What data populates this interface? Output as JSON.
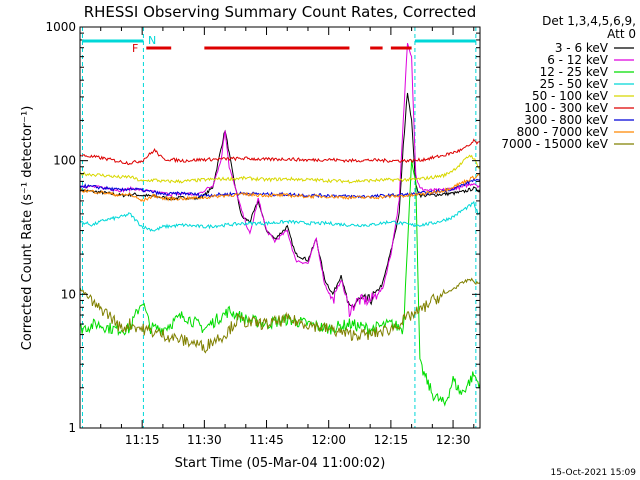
{
  "chart_data": {
    "type": "line",
    "title": "RHESSI Observing Summary Count Rates, Corrected",
    "xlabel": "Start Time (05-Mar-04 11:00:02)",
    "ylabel": "Corrected Count Rate (s⁻¹ detector⁻¹)",
    "yscale": "log",
    "ylim": [
      1,
      1000
    ],
    "xlim_minutes": [
      0,
      96.5
    ],
    "x_tick_labels": [
      "11:15",
      "11:30",
      "11:45",
      "12:00",
      "12:15",
      "12:30"
    ],
    "x_tick_minutes": [
      15,
      30,
      45,
      60,
      75,
      90
    ],
    "y_tick_labels": [
      "1",
      "10",
      "100",
      "1000"
    ],
    "y_tick_values": [
      1,
      10,
      100,
      1000
    ],
    "legend_header": [
      "Det 1,3,4,5,6,9,",
      "Att 0"
    ],
    "legend_position": "right",
    "annotations": {
      "night_marker": "N",
      "flare_marker": "F"
    },
    "footer_date": "15-Oct-2021 15:09",
    "series": [
      {
        "name": "3 - 6 keV",
        "color": "#000000",
        "x": [
          0,
          5,
          10,
          13,
          15,
          18,
          22,
          26,
          28,
          30,
          32,
          35,
          37,
          39,
          41,
          43,
          45,
          47,
          50,
          52,
          55,
          57,
          59,
          61,
          63,
          65,
          67,
          70,
          73,
          75,
          77,
          78,
          79,
          80,
          81,
          82,
          84,
          87,
          90,
          92,
          95,
          96
        ],
        "y": [
          60,
          58,
          55,
          56,
          55,
          54,
          52,
          53,
          52,
          55,
          63,
          170,
          75,
          38,
          35,
          50,
          30,
          26,
          32,
          20,
          18,
          26,
          13,
          10,
          14,
          7.6,
          9,
          9,
          12,
          21,
          40,
          130,
          330,
          200,
          65,
          55,
          55,
          56,
          57,
          58,
          62,
          60
        ]
      },
      {
        "name": "6 - 12 keV",
        "color": "#dd00dd",
        "x": [
          0,
          5,
          10,
          13,
          15,
          18,
          22,
          26,
          28,
          30,
          32,
          34,
          35,
          36,
          37,
          39,
          41,
          43,
          45,
          47,
          50,
          52,
          55,
          57,
          59,
          61,
          63,
          65,
          67,
          70,
          73,
          75,
          77,
          78,
          79,
          80,
          81,
          82,
          84,
          87,
          90,
          92,
          95,
          96
        ],
        "y": [
          65,
          63,
          60,
          62,
          60,
          58,
          56,
          57,
          55,
          60,
          65,
          100,
          170,
          90,
          70,
          42,
          28,
          52,
          30,
          25,
          30,
          18,
          17,
          26,
          12,
          9,
          13,
          7.5,
          9,
          9,
          11,
          20,
          50,
          200,
          780,
          600,
          78,
          62,
          60,
          60,
          62,
          63,
          68,
          65
        ]
      },
      {
        "name": "12 - 25 keV",
        "color": "#00dd00",
        "x": [
          0,
          4,
          8,
          12,
          15,
          17,
          20,
          25,
          30,
          33,
          36,
          40,
          45,
          50,
          55,
          60,
          65,
          70,
          75,
          78,
          80,
          81,
          82,
          85,
          88,
          90,
          92,
          95,
          96
        ],
        "y": [
          5.5,
          6,
          5.5,
          5.5,
          9,
          5.6,
          5.5,
          7,
          5.5,
          6.5,
          7.5,
          6.5,
          6,
          6.5,
          6,
          5.5,
          6,
          5.5,
          6,
          5.5,
          100,
          70,
          3,
          1.8,
          1.5,
          2.3,
          1.8,
          2.5,
          2.2
        ]
      },
      {
        "name": "25 - 50 keV",
        "color": "#00d8d8",
        "x": [
          0,
          3,
          6,
          10,
          12,
          15,
          18,
          20,
          25,
          30,
          35,
          40,
          45,
          50,
          55,
          60,
          65,
          70,
          75,
          80,
          82,
          85,
          88,
          90,
          92,
          95,
          96
        ],
        "y": [
          35,
          33,
          36,
          38,
          40,
          32,
          30,
          32,
          33,
          32,
          33,
          34,
          34,
          35,
          34,
          34,
          33,
          33,
          35,
          33,
          33,
          34,
          36,
          38,
          42,
          48,
          40
        ]
      },
      {
        "name": "50 - 100 keV",
        "color": "#d8d800",
        "x": [
          0,
          5,
          10,
          12,
          15,
          18,
          20,
          25,
          30,
          35,
          40,
          45,
          50,
          55,
          60,
          65,
          70,
          75,
          80,
          82,
          85,
          88,
          90,
          92,
          94,
          95,
          96
        ],
        "y": [
          80,
          78,
          75,
          76,
          70,
          72,
          70,
          70,
          72,
          73,
          74,
          72,
          73,
          72,
          71,
          70,
          71,
          72,
          72,
          73,
          75,
          78,
          85,
          95,
          110,
          105,
          90
        ]
      },
      {
        "name": "100 - 300 keV",
        "color": "#dd0000",
        "x": [
          0,
          5,
          10,
          12,
          15,
          18,
          20,
          25,
          30,
          35,
          40,
          45,
          50,
          55,
          60,
          65,
          70,
          75,
          80,
          82,
          85,
          88,
          90,
          92,
          94,
          95,
          96
        ],
        "y": [
          110,
          105,
          98,
          96,
          100,
          120,
          103,
          100,
          102,
          103,
          104,
          102,
          103,
          101,
          102,
          100,
          101,
          100,
          100,
          101,
          105,
          110,
          115,
          120,
          130,
          140,
          135
        ]
      },
      {
        "name": "300 - 800 keV",
        "color": "#0000d8",
        "x": [
          0,
          5,
          10,
          12,
          15,
          18,
          20,
          25,
          30,
          35,
          40,
          45,
          50,
          55,
          60,
          65,
          70,
          75,
          80,
          82,
          85,
          88,
          90,
          92,
          95,
          96
        ],
        "y": [
          65,
          63,
          60,
          62,
          60,
          58,
          56,
          57,
          55,
          56,
          57,
          56,
          56,
          55,
          55,
          54,
          54,
          55,
          56,
          57,
          58,
          60,
          62,
          65,
          72,
          70
        ]
      },
      {
        "name": "800 - 7000 keV",
        "color": "#ff8800",
        "x": [
          0,
          5,
          10,
          12,
          15,
          18,
          20,
          25,
          30,
          35,
          40,
          45,
          50,
          55,
          60,
          65,
          70,
          75,
          80,
          82,
          85,
          88,
          90,
          92,
          95,
          96
        ],
        "y": [
          60,
          58,
          55,
          56,
          50,
          55,
          52,
          52,
          53,
          55,
          56,
          55,
          55,
          54,
          54,
          53,
          53,
          54,
          55,
          56,
          58,
          60,
          64,
          68,
          75,
          78
        ]
      },
      {
        "name": "7000 - 15000 keV",
        "color": "#808000",
        "x": [
          0,
          2,
          4,
          6,
          8,
          10,
          12,
          15,
          18,
          20,
          25,
          28,
          30,
          32,
          35,
          38,
          40,
          45,
          50,
          55,
          60,
          65,
          70,
          75,
          80,
          82,
          85,
          88,
          90,
          92,
          94,
          96
        ],
        "y": [
          11,
          9.5,
          8,
          7.5,
          6.5,
          5.5,
          6,
          5.5,
          5.2,
          5,
          4.5,
          4.3,
          4,
          4.5,
          5,
          6.5,
          6.2,
          6,
          6.5,
          6,
          5.5,
          5,
          5,
          5.5,
          7,
          7.5,
          9,
          10,
          11,
          12,
          13,
          12
        ]
      }
    ]
  }
}
